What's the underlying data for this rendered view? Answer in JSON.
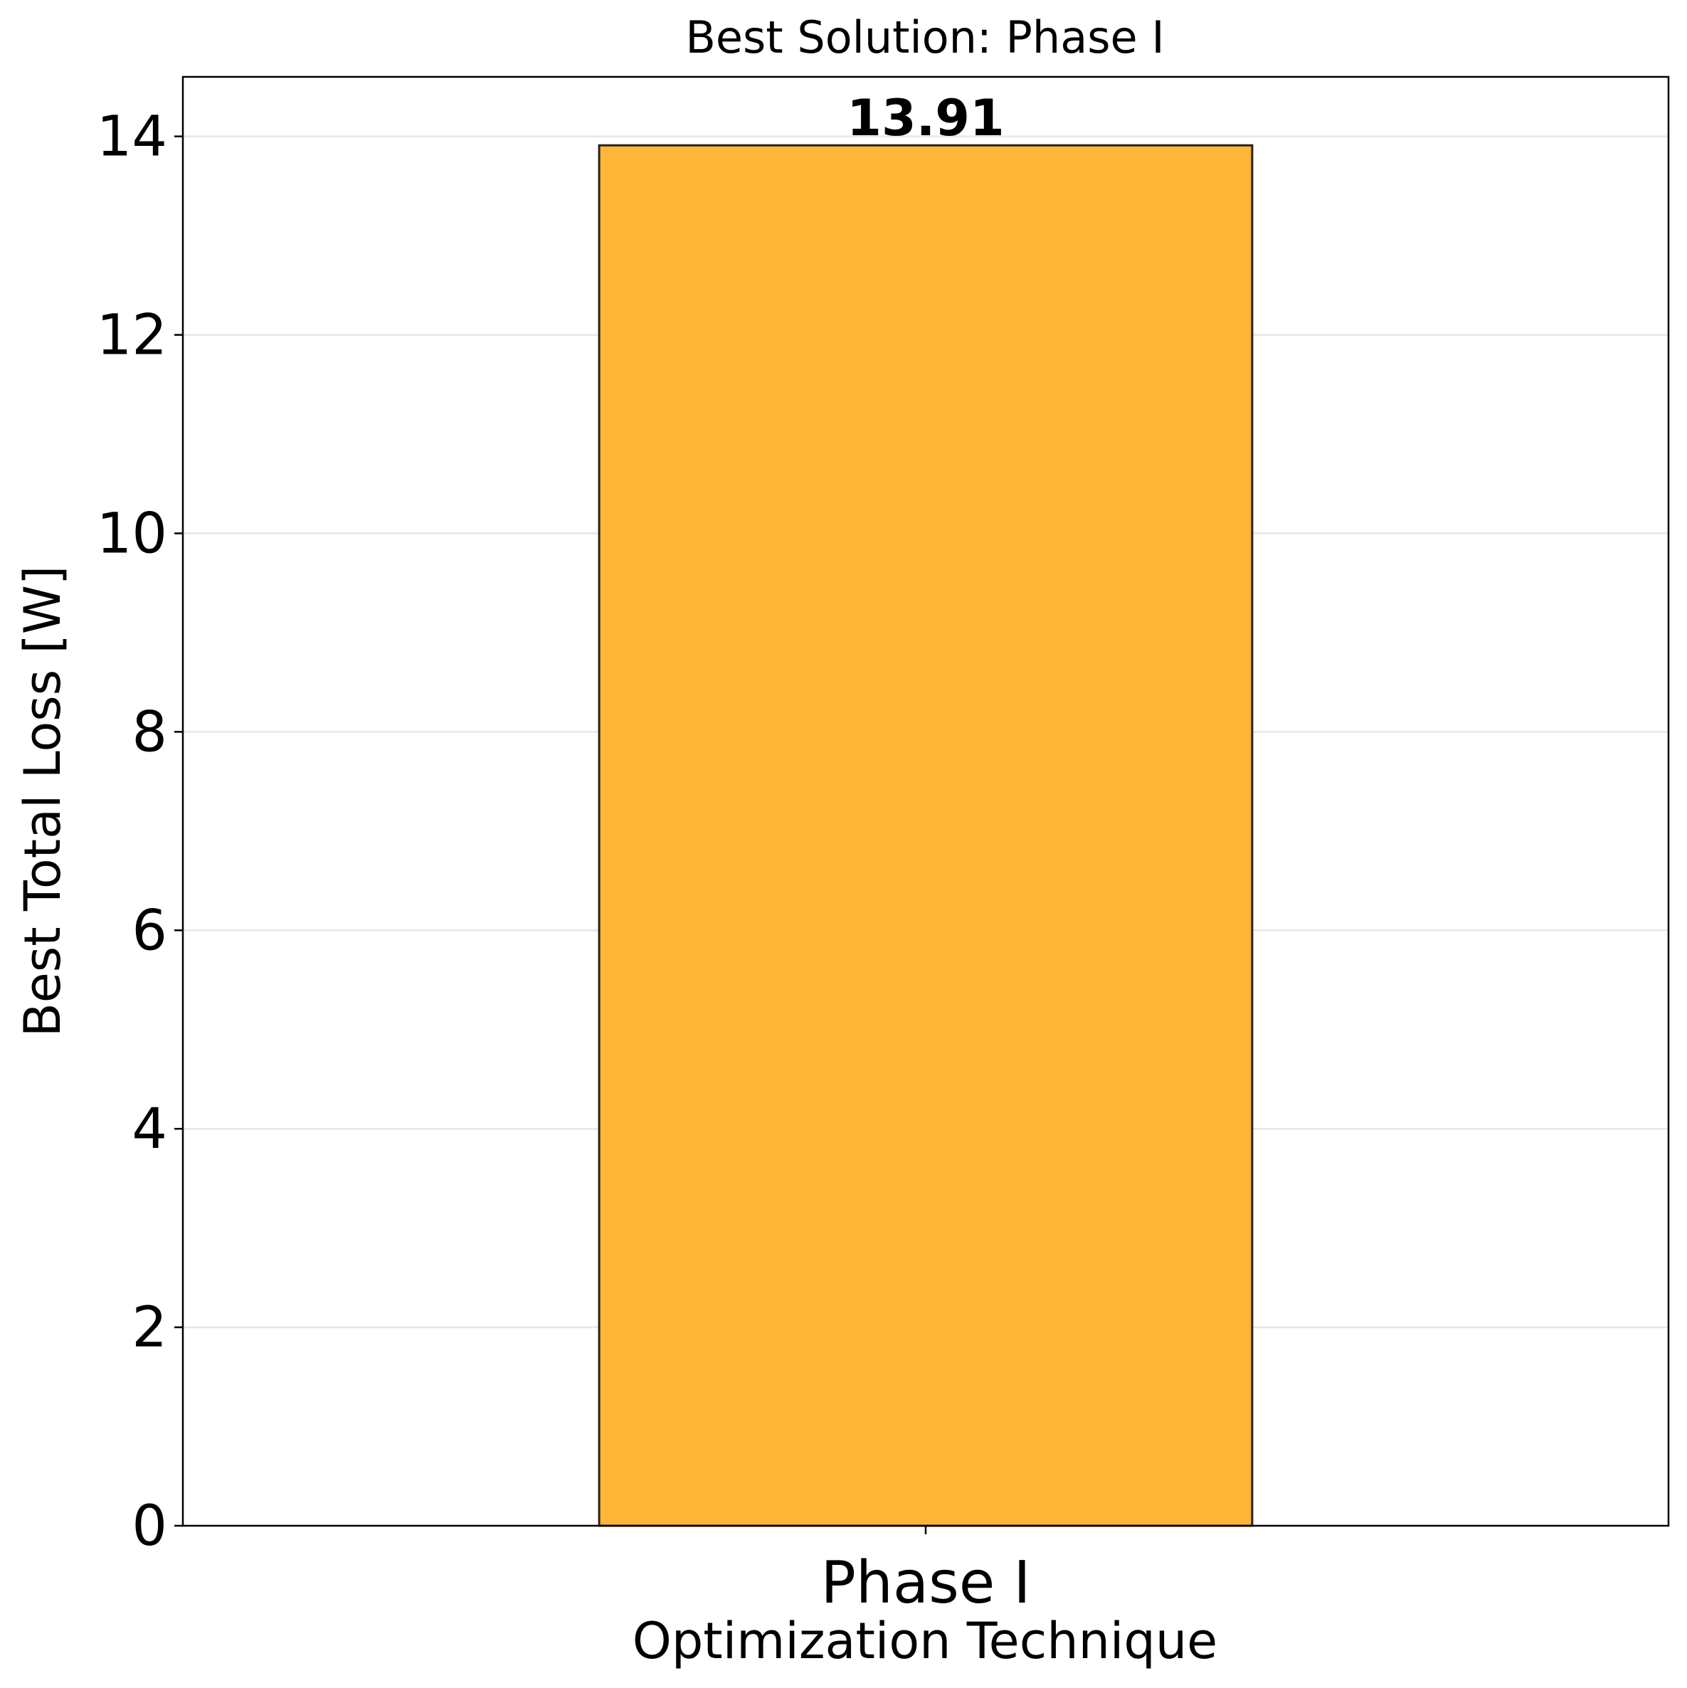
{
  "chart_data": {
    "type": "bar",
    "title": "Best Solution: Phase I",
    "xlabel": "Optimization Technique",
    "ylabel": "Best Total Loss [W]",
    "categories": [
      "Phase I"
    ],
    "values": [
      13.91
    ],
    "value_labels": [
      "13.91"
    ],
    "ylim": [
      0,
      14.6
    ],
    "yticks": [
      0,
      2,
      4,
      6,
      8,
      10,
      12,
      14
    ],
    "ytick_labels": [
      "0",
      "2",
      "4",
      "6",
      "8",
      "10",
      "12",
      "14"
    ],
    "grid": "y-axis, light",
    "legend": "none",
    "colors": {
      "bar_fill": "#FFB535",
      "bar_edge": "#222222",
      "grid": "#e6e6e6",
      "axis": "#000000"
    }
  }
}
